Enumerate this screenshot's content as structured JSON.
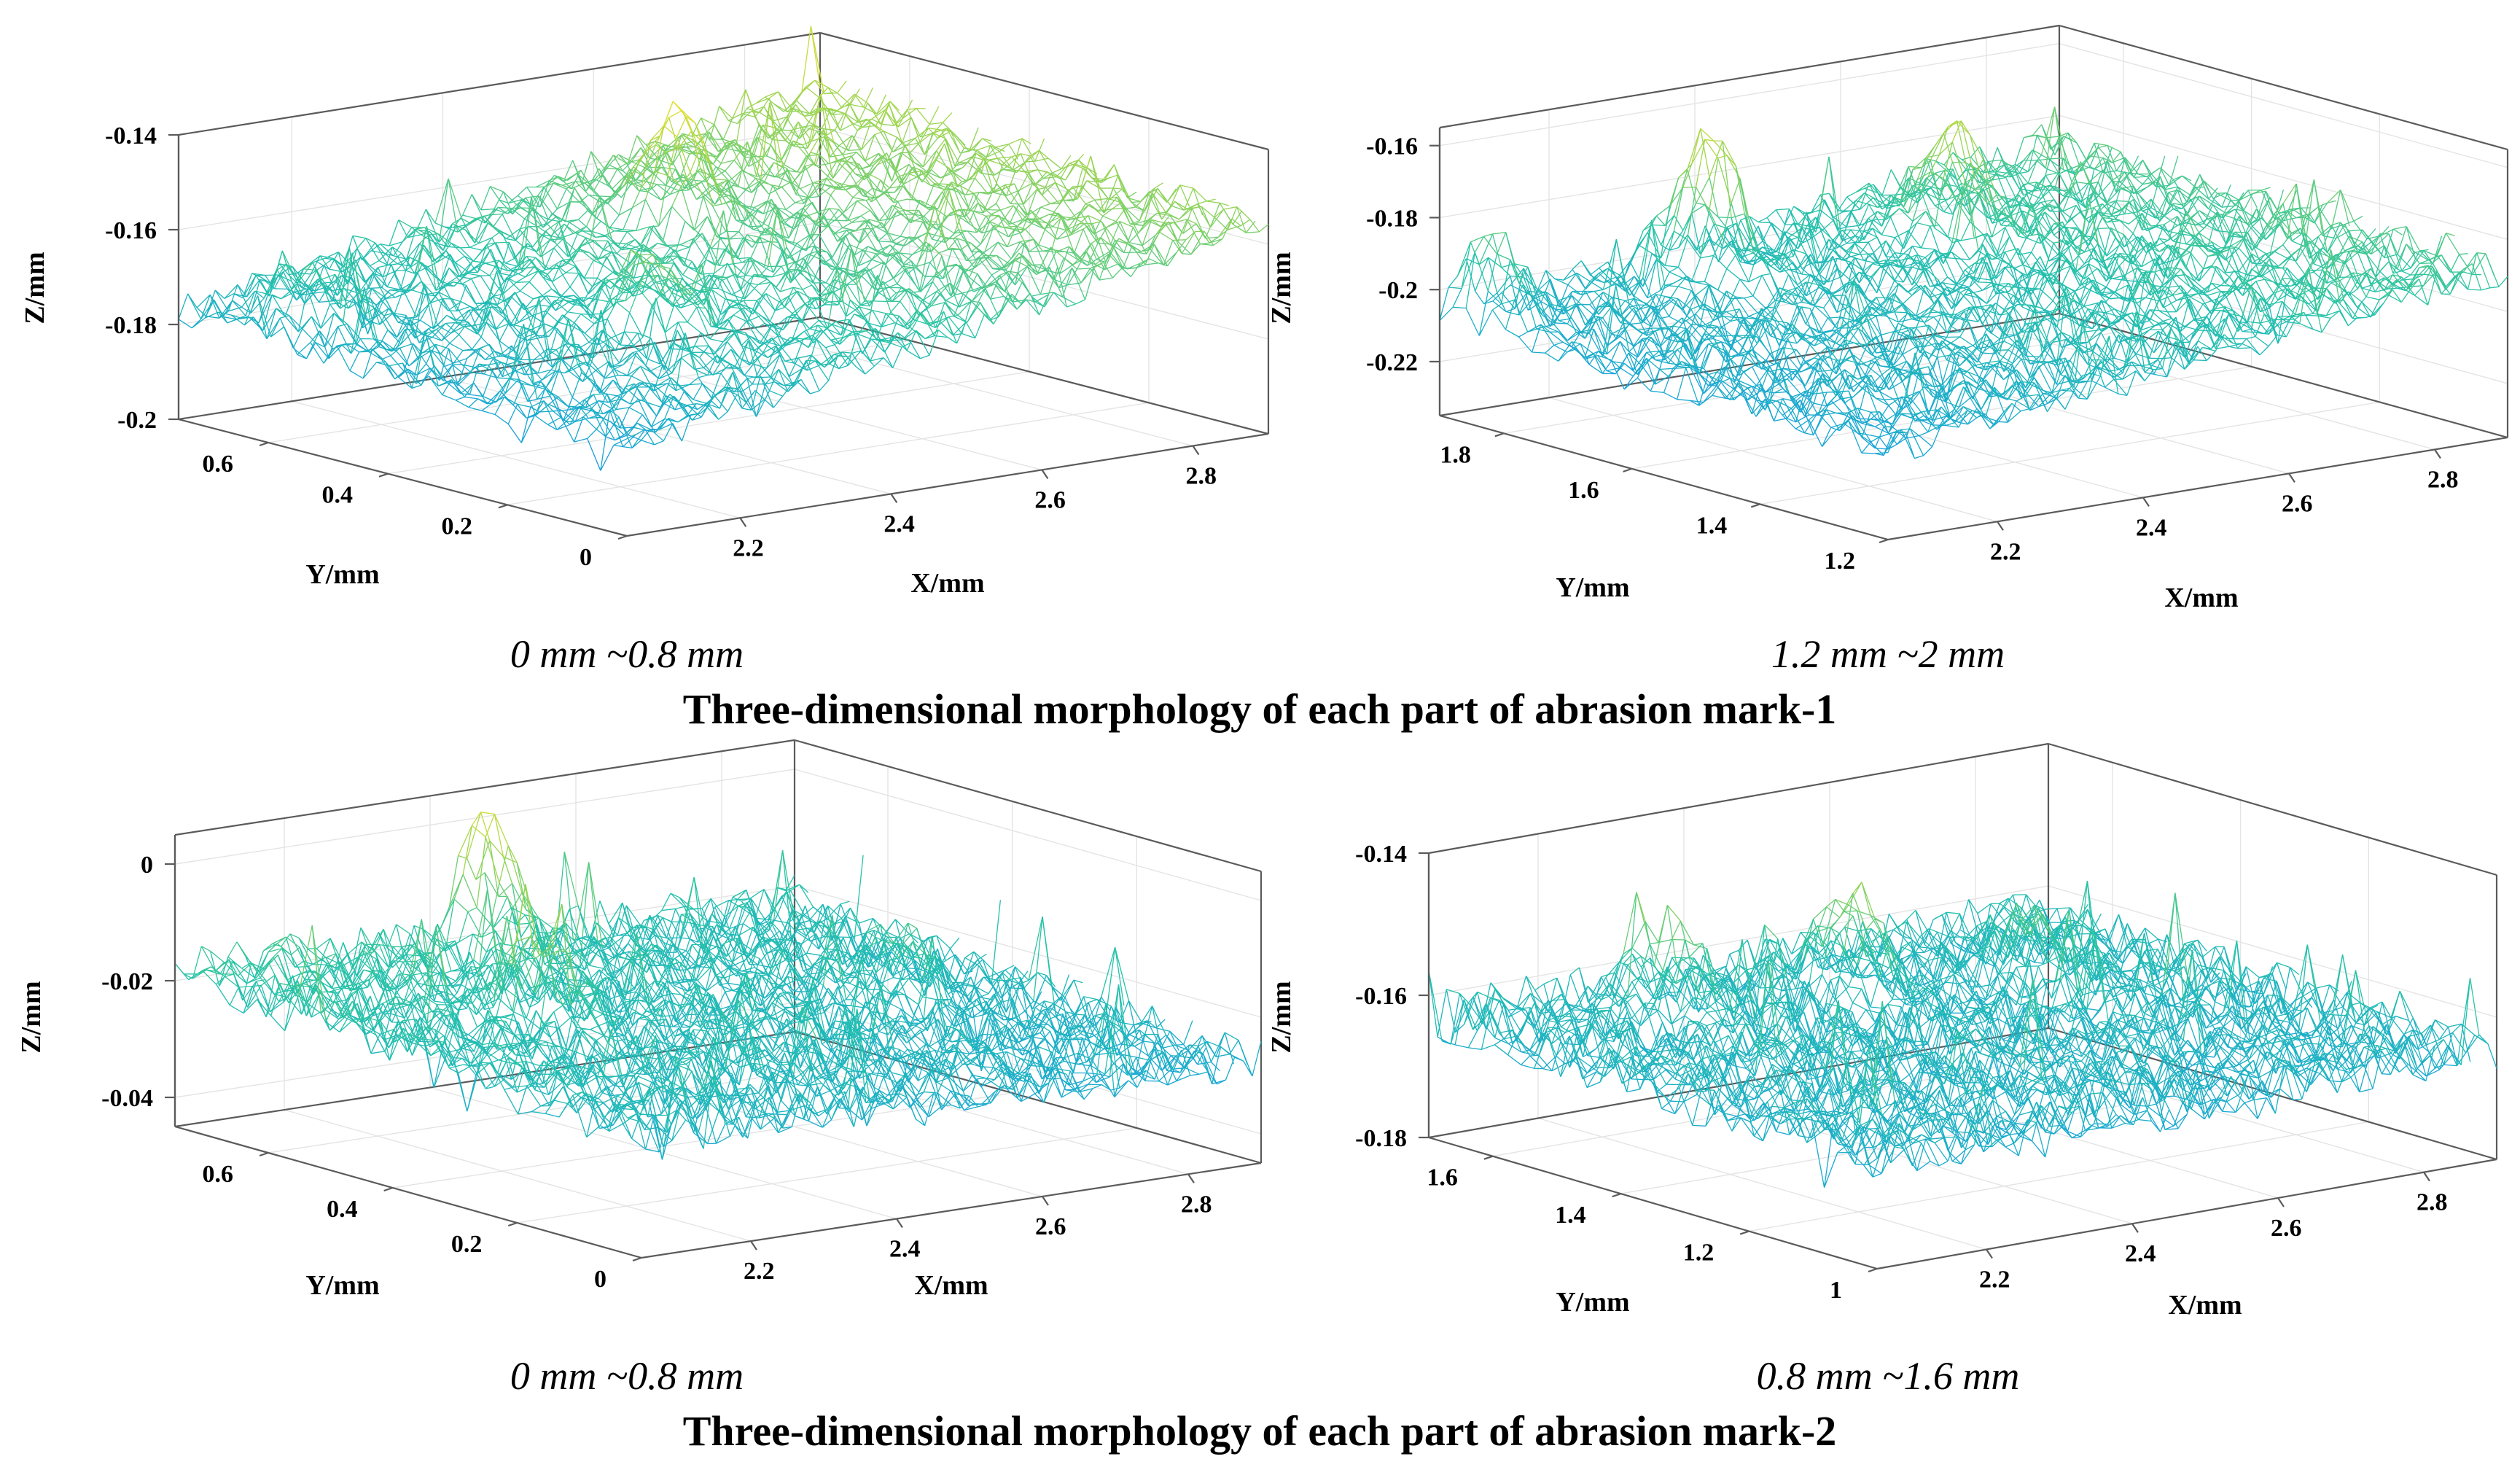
{
  "chart_data": [
    {
      "type": "surface",
      "range_label": "0 mm ~0.8 mm",
      "xlabel": "X/mm",
      "ylabel": "Y/mm",
      "zlabel": "Z/mm",
      "xlim": [
        2.05,
        2.9
      ],
      "ylim": [
        0,
        0.75
      ],
      "zlim": [
        -0.2,
        -0.14
      ],
      "xticks": [
        "2.2",
        "2.4",
        "2.6",
        "2.8"
      ],
      "xtick_values": [
        2.2,
        2.4,
        2.6,
        2.8
      ],
      "yticks": [
        "0",
        "0.2",
        "0.4",
        "0.6"
      ],
      "ytick_values": [
        0,
        0.2,
        0.4,
        0.6
      ],
      "zticks": [
        "-0.2",
        "-0.18",
        "-0.16",
        "-0.14"
      ],
      "ztick_values": [
        -0.2,
        -0.18,
        -0.16,
        -0.14
      ],
      "surface": {
        "base": -0.181,
        "tilt_x": 0.026,
        "tilt_y": 0.004,
        "noise": 0.0035,
        "peaks": [
          [
            2.55,
            0.55,
            0.022
          ],
          [
            2.32,
            0.3,
            0.014
          ],
          [
            2.12,
            0.62,
            0.01
          ]
        ]
      },
      "color_scale": [
        "#2c5cf0",
        "#17a4d8",
        "#24c3a8",
        "#8fd35a",
        "#e6e02c"
      ]
    },
    {
      "type": "surface",
      "range_label": "1.2 mm ~2 mm",
      "xlabel": "X/mm",
      "ylabel": "Y/mm",
      "zlabel": "Z/mm",
      "xlim": [
        2.05,
        2.9
      ],
      "ylim": [
        1.2,
        1.9
      ],
      "zlim": [
        -0.235,
        -0.155
      ],
      "xticks": [
        "2.2",
        "2.4",
        "2.6",
        "2.8"
      ],
      "xtick_values": [
        2.2,
        2.4,
        2.6,
        2.8
      ],
      "yticks": [
        "1.2",
        "1.4",
        "1.6",
        "1.8"
      ],
      "ytick_values": [
        1.2,
        1.4,
        1.6,
        1.8
      ],
      "zticks": [
        "-0.22",
        "-0.2",
        "-0.18",
        "-0.16"
      ],
      "ztick_values": [
        -0.22,
        -0.2,
        -0.18,
        -0.16
      ],
      "surface": {
        "base": -0.21,
        "tilt_x": 0.022,
        "tilt_y": 0.002,
        "noise": 0.005,
        "peaks": [
          [
            2.35,
            1.82,
            0.04
          ],
          [
            2.62,
            1.75,
            0.028
          ],
          [
            2.08,
            1.85,
            0.022
          ]
        ]
      },
      "color_scale": [
        "#2c5cf0",
        "#17a4d8",
        "#24c3a8",
        "#8fd35a",
        "#e6e02c"
      ]
    },
    {
      "type": "surface",
      "range_label": "0 mm ~0.8 mm",
      "xlabel": "X/mm",
      "ylabel": "Y/mm",
      "zlabel": "Z/mm",
      "xlim": [
        2.05,
        2.9
      ],
      "ylim": [
        0,
        0.75
      ],
      "zlim": [
        -0.045,
        0.005
      ],
      "xticks": [
        "2.2",
        "2.4",
        "2.6",
        "2.8"
      ],
      "xtick_values": [
        2.2,
        2.4,
        2.6,
        2.8
      ],
      "yticks": [
        "0",
        "0.2",
        "0.4",
        "0.6"
      ],
      "ytick_values": [
        0,
        0.2,
        0.4,
        0.6
      ],
      "zticks": [
        "-0.04",
        "-0.02",
        "0"
      ],
      "ztick_values": [
        -0.04,
        -0.02,
        0
      ],
      "surface": {
        "base": -0.024,
        "tilt_x": -0.004,
        "tilt_y": 0.006,
        "noise": 0.004,
        "peaks": [
          [
            2.45,
            0.72,
            0.02
          ],
          [
            2.3,
            0.45,
            0.012
          ],
          [
            2.75,
            0.4,
            0.01
          ]
        ]
      },
      "color_scale": [
        "#2c5cf0",
        "#17a4d8",
        "#24c3a8",
        "#8fd35a",
        "#e6e02c"
      ]
    },
    {
      "type": "surface",
      "range_label": "0.8 mm ~1.6 mm",
      "xlabel": "X/mm",
      "ylabel": "Y/mm",
      "zlabel": "Z/mm",
      "xlim": [
        2.05,
        2.9
      ],
      "ylim": [
        1.0,
        1.7
      ],
      "zlim": [
        -0.18,
        -0.14
      ],
      "xticks": [
        "2.2",
        "2.4",
        "2.6",
        "2.8"
      ],
      "xtick_values": [
        2.2,
        2.4,
        2.6,
        2.8
      ],
      "yticks": [
        "1",
        "1.2",
        "1.4",
        "1.6"
      ],
      "ytick_values": [
        1.0,
        1.2,
        1.4,
        1.6
      ],
      "zticks": [
        "-0.18",
        "-0.16",
        "-0.14"
      ],
      "ztick_values": [
        -0.18,
        -0.16,
        -0.14
      ],
      "surface": {
        "base": -0.165,
        "tilt_x": 0.0,
        "tilt_y": 0.002,
        "noise": 0.0035,
        "peaks": [
          [
            2.5,
            1.55,
            0.014
          ],
          [
            2.3,
            1.6,
            0.012
          ],
          [
            2.7,
            1.5,
            0.009
          ]
        ]
      },
      "color_scale": [
        "#2c5cf0",
        "#17a4d8",
        "#24c3a8",
        "#8fd35a",
        "#e6e02c"
      ]
    }
  ],
  "titles": {
    "group1": "Three-dimensional morphology of each part of abrasion mark-1",
    "group2": "Three-dimensional morphology of each part of abrasion mark-2"
  }
}
